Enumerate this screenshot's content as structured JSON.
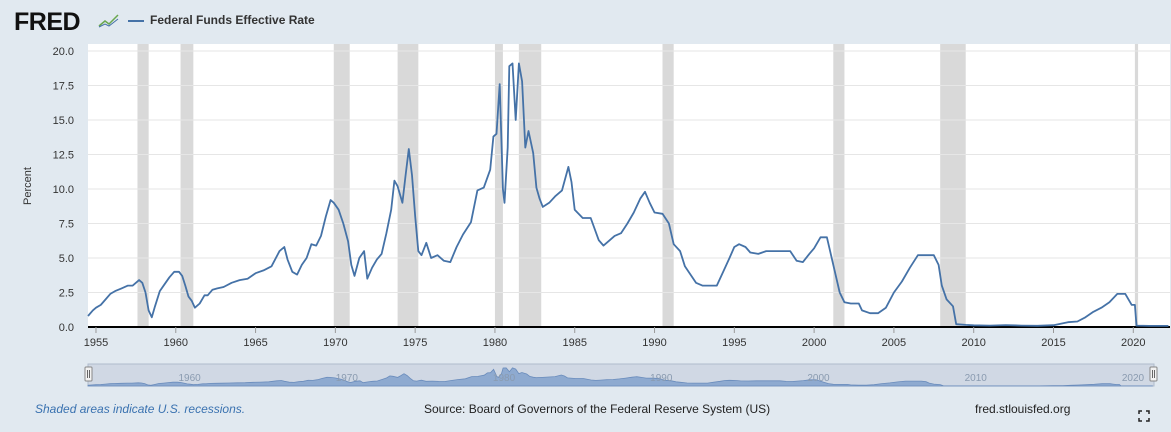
{
  "header": {
    "logo_text": "FRED",
    "legend_label": "Federal Funds Effective Rate",
    "series_color": "#4572a7"
  },
  "footer": {
    "recession_note": "Shaded areas indicate U.S. recessions.",
    "source": "Source: Board of Governors of the Federal Reserve System (US)",
    "site": "fred.stlouisfed.org"
  },
  "navigator": {
    "tick_labels": [
      "1960",
      "1970",
      "1980",
      "1990",
      "2000",
      "2010",
      "2020"
    ]
  },
  "icons": [
    "fred-chart-logo-icon",
    "expand-icon",
    "navigator-handle-icon"
  ],
  "chart_data": {
    "type": "line",
    "title": "",
    "ylabel": "Percent",
    "xlabel": "",
    "ylim": [
      0,
      20
    ],
    "xlim": [
      1954.5,
      2022.3
    ],
    "grid": "horizontal",
    "yticks": [
      0.0,
      2.5,
      5.0,
      7.5,
      10.0,
      12.5,
      15.0,
      17.5,
      20.0
    ],
    "ytick_labels": [
      "0.0",
      "2.5",
      "5.0",
      "7.5",
      "10.0",
      "12.5",
      "15.0",
      "17.5",
      "20.0"
    ],
    "xticks": [
      1955,
      1960,
      1965,
      1970,
      1975,
      1980,
      1985,
      1990,
      1995,
      2000,
      2005,
      2010,
      2015,
      2020
    ],
    "xtick_labels": [
      "1955",
      "1960",
      "1965",
      "1970",
      "1975",
      "1980",
      "1985",
      "1990",
      "1995",
      "2000",
      "2005",
      "2010",
      "2015",
      "2020"
    ],
    "recessions": [
      [
        1957.6,
        1958.3
      ],
      [
        1960.3,
        1961.1
      ],
      [
        1969.9,
        1970.9
      ],
      [
        1973.9,
        1975.2
      ],
      [
        1980.0,
        1980.5
      ],
      [
        1981.5,
        1982.9
      ],
      [
        1990.5,
        1991.2
      ],
      [
        2001.2,
        2001.9
      ],
      [
        2007.9,
        2009.5
      ],
      [
        2020.1,
        2020.3
      ]
    ],
    "series": [
      {
        "name": "Federal Funds Effective Rate",
        "color": "#4572a7",
        "points": [
          [
            1954.5,
            0.8
          ],
          [
            1954.8,
            1.2
          ],
          [
            1955.0,
            1.4
          ],
          [
            1955.3,
            1.6
          ],
          [
            1955.6,
            2.0
          ],
          [
            1955.9,
            2.4
          ],
          [
            1956.2,
            2.6
          ],
          [
            1956.6,
            2.8
          ],
          [
            1957.0,
            3.0
          ],
          [
            1957.3,
            3.0
          ],
          [
            1957.7,
            3.4
          ],
          [
            1957.9,
            3.2
          ],
          [
            1958.1,
            2.5
          ],
          [
            1958.3,
            1.2
          ],
          [
            1958.5,
            0.7
          ],
          [
            1958.7,
            1.5
          ],
          [
            1959.0,
            2.6
          ],
          [
            1959.3,
            3.1
          ],
          [
            1959.6,
            3.6
          ],
          [
            1959.9,
            4.0
          ],
          [
            1960.2,
            4.0
          ],
          [
            1960.4,
            3.7
          ],
          [
            1960.6,
            3.0
          ],
          [
            1960.8,
            2.2
          ],
          [
            1961.0,
            1.9
          ],
          [
            1961.2,
            1.4
          ],
          [
            1961.5,
            1.7
          ],
          [
            1961.8,
            2.3
          ],
          [
            1962.0,
            2.3
          ],
          [
            1962.3,
            2.7
          ],
          [
            1962.6,
            2.8
          ],
          [
            1963.0,
            2.9
          ],
          [
            1963.5,
            3.2
          ],
          [
            1964.0,
            3.4
          ],
          [
            1964.5,
            3.5
          ],
          [
            1965.0,
            3.9
          ],
          [
            1965.5,
            4.1
          ],
          [
            1966.0,
            4.4
          ],
          [
            1966.5,
            5.5
          ],
          [
            1966.8,
            5.8
          ],
          [
            1967.0,
            4.9
          ],
          [
            1967.3,
            4.0
          ],
          [
            1967.6,
            3.8
          ],
          [
            1967.9,
            4.5
          ],
          [
            1968.2,
            5.0
          ],
          [
            1968.5,
            6.0
          ],
          [
            1968.8,
            5.9
          ],
          [
            1969.1,
            6.6
          ],
          [
            1969.4,
            8.0
          ],
          [
            1969.7,
            9.2
          ],
          [
            1969.9,
            9.0
          ],
          [
            1970.2,
            8.5
          ],
          [
            1970.5,
            7.5
          ],
          [
            1970.8,
            6.2
          ],
          [
            1971.0,
            4.5
          ],
          [
            1971.2,
            3.7
          ],
          [
            1971.5,
            5.0
          ],
          [
            1971.8,
            5.5
          ],
          [
            1972.0,
            3.5
          ],
          [
            1972.3,
            4.3
          ],
          [
            1972.6,
            4.9
          ],
          [
            1972.9,
            5.3
          ],
          [
            1973.2,
            6.8
          ],
          [
            1973.5,
            8.5
          ],
          [
            1973.7,
            10.6
          ],
          [
            1973.9,
            10.2
          ],
          [
            1974.2,
            9.0
          ],
          [
            1974.4,
            11.0
          ],
          [
            1974.6,
            12.9
          ],
          [
            1974.8,
            11.0
          ],
          [
            1975.0,
            8.0
          ],
          [
            1975.2,
            5.5
          ],
          [
            1975.4,
            5.2
          ],
          [
            1975.7,
            6.1
          ],
          [
            1976.0,
            5.0
          ],
          [
            1976.4,
            5.2
          ],
          [
            1976.8,
            4.8
          ],
          [
            1977.2,
            4.7
          ],
          [
            1977.6,
            5.8
          ],
          [
            1978.0,
            6.7
          ],
          [
            1978.5,
            7.6
          ],
          [
            1978.9,
            9.9
          ],
          [
            1979.3,
            10.1
          ],
          [
            1979.7,
            11.4
          ],
          [
            1979.9,
            13.8
          ],
          [
            1980.1,
            14.0
          ],
          [
            1980.3,
            17.6
          ],
          [
            1980.5,
            10.0
          ],
          [
            1980.6,
            9.0
          ],
          [
            1980.8,
            13.0
          ],
          [
            1980.9,
            18.9
          ],
          [
            1981.1,
            19.1
          ],
          [
            1981.3,
            15.0
          ],
          [
            1981.5,
            19.1
          ],
          [
            1981.7,
            17.8
          ],
          [
            1981.9,
            13.0
          ],
          [
            1982.1,
            14.2
          ],
          [
            1982.4,
            12.6
          ],
          [
            1982.6,
            10.1
          ],
          [
            1982.8,
            9.3
          ],
          [
            1983.0,
            8.7
          ],
          [
            1983.4,
            9.0
          ],
          [
            1983.8,
            9.5
          ],
          [
            1984.2,
            9.9
          ],
          [
            1984.6,
            11.6
          ],
          [
            1984.8,
            10.5
          ],
          [
            1985.0,
            8.5
          ],
          [
            1985.5,
            7.9
          ],
          [
            1986.0,
            7.9
          ],
          [
            1986.5,
            6.3
          ],
          [
            1986.8,
            5.9
          ],
          [
            1987.1,
            6.2
          ],
          [
            1987.5,
            6.6
          ],
          [
            1987.9,
            6.8
          ],
          [
            1988.3,
            7.5
          ],
          [
            1988.7,
            8.3
          ],
          [
            1989.1,
            9.3
          ],
          [
            1989.4,
            9.8
          ],
          [
            1989.7,
            9.0
          ],
          [
            1990.0,
            8.3
          ],
          [
            1990.5,
            8.2
          ],
          [
            1990.9,
            7.5
          ],
          [
            1991.2,
            6.0
          ],
          [
            1991.6,
            5.5
          ],
          [
            1991.9,
            4.4
          ],
          [
            1992.2,
            3.9
          ],
          [
            1992.6,
            3.2
          ],
          [
            1993.0,
            3.0
          ],
          [
            1993.5,
            3.0
          ],
          [
            1993.9,
            3.0
          ],
          [
            1994.3,
            4.0
          ],
          [
            1994.7,
            5.0
          ],
          [
            1995.0,
            5.8
          ],
          [
            1995.3,
            6.0
          ],
          [
            1995.7,
            5.8
          ],
          [
            1996.0,
            5.4
          ],
          [
            1996.5,
            5.3
          ],
          [
            1997.0,
            5.5
          ],
          [
            1997.5,
            5.5
          ],
          [
            1998.0,
            5.5
          ],
          [
            1998.5,
            5.5
          ],
          [
            1998.9,
            4.8
          ],
          [
            1999.3,
            4.7
          ],
          [
            1999.7,
            5.3
          ],
          [
            2000.0,
            5.7
          ],
          [
            2000.4,
            6.5
          ],
          [
            2000.8,
            6.5
          ],
          [
            2001.0,
            5.5
          ],
          [
            2001.3,
            4.0
          ],
          [
            2001.6,
            2.5
          ],
          [
            2001.9,
            1.8
          ],
          [
            2002.3,
            1.7
          ],
          [
            2002.8,
            1.7
          ],
          [
            2003.0,
            1.2
          ],
          [
            2003.5,
            1.0
          ],
          [
            2004.0,
            1.0
          ],
          [
            2004.5,
            1.4
          ],
          [
            2005.0,
            2.5
          ],
          [
            2005.5,
            3.3
          ],
          [
            2006.0,
            4.3
          ],
          [
            2006.5,
            5.2
          ],
          [
            2007.0,
            5.2
          ],
          [
            2007.5,
            5.2
          ],
          [
            2007.8,
            4.5
          ],
          [
            2008.0,
            3.0
          ],
          [
            2008.3,
            2.0
          ],
          [
            2008.7,
            1.5
          ],
          [
            2008.9,
            0.2
          ],
          [
            2009.5,
            0.15
          ],
          [
            2010.0,
            0.12
          ],
          [
            2011.0,
            0.1
          ],
          [
            2012.0,
            0.14
          ],
          [
            2013.0,
            0.1
          ],
          [
            2014.0,
            0.09
          ],
          [
            2015.0,
            0.13
          ],
          [
            2015.9,
            0.35
          ],
          [
            2016.5,
            0.4
          ],
          [
            2017.0,
            0.7
          ],
          [
            2017.5,
            1.1
          ],
          [
            2018.0,
            1.4
          ],
          [
            2018.5,
            1.8
          ],
          [
            2019.0,
            2.4
          ],
          [
            2019.5,
            2.4
          ],
          [
            2019.7,
            2.0
          ],
          [
            2019.9,
            1.6
          ],
          [
            2020.1,
            1.6
          ],
          [
            2020.2,
            0.1
          ],
          [
            2021.0,
            0.08
          ],
          [
            2022.2,
            0.08
          ]
        ]
      }
    ]
  }
}
